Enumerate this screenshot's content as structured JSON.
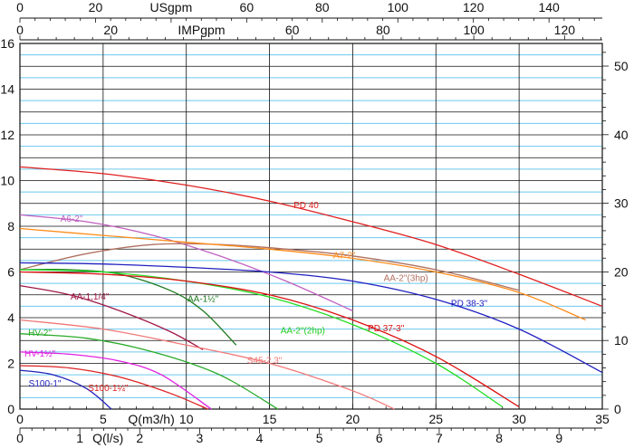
{
  "chart_data": {
    "type": "line",
    "title": "",
    "x": {
      "label": "Q(m3/h)",
      "range": [
        0,
        35
      ],
      "ticks": [
        "0",
        "5",
        "10",
        "15",
        "20",
        "25",
        "30",
        "35"
      ]
    },
    "y_left": {
      "range": [
        0,
        16
      ],
      "ticks": [
        "0",
        "2",
        "4",
        "6",
        "8",
        "10",
        "12",
        "14",
        "16"
      ]
    },
    "y_right": {
      "range": [
        0,
        53.3
      ],
      "ticks": [
        "0",
        "10",
        "20",
        "30",
        "40",
        "50"
      ]
    },
    "top_axis_usgpm": {
      "label": "USgpm",
      "ticks": [
        {
          "label": "0",
          "value": 0
        },
        {
          "label": "20",
          "value": 20
        },
        {
          "label": "USgpm",
          "value": 40
        },
        {
          "label": "60",
          "value": 60
        },
        {
          "label": "80",
          "value": 80
        },
        {
          "label": "100",
          "value": 100
        },
        {
          "label": "120",
          "value": 120
        },
        {
          "label": "140",
          "value": 140
        }
      ]
    },
    "top_axis_impgpm": {
      "label": "IMPgpm",
      "ticks": [
        {
          "label": "0",
          "value": 0
        },
        {
          "label": "20",
          "value": 20
        },
        {
          "label": "IMPgpm",
          "value": 40
        },
        {
          "label": "60",
          "value": 60
        },
        {
          "label": "80",
          "value": 80
        },
        {
          "label": "100",
          "value": 100
        },
        {
          "label": "120",
          "value": 120
        }
      ]
    },
    "bottom_axis_ls": {
      "label": "Q(l/s)",
      "ticks": [
        {
          "label": "0",
          "value": 0
        },
        {
          "label": "1",
          "value": 1
        },
        {
          "label": "Q(l/s)",
          "value": 1.5
        },
        {
          "label": "2",
          "value": 2
        },
        {
          "label": "3",
          "value": 3
        },
        {
          "label": "4",
          "value": 4
        },
        {
          "label": "5",
          "value": 5
        },
        {
          "label": "6",
          "value": 6
        },
        {
          "label": "7",
          "value": 7
        },
        {
          "label": "8",
          "value": 8
        },
        {
          "label": "9",
          "value": 9
        }
      ]
    },
    "series": [
      {
        "name": "PD 40",
        "color": "#e02020",
        "label_at": [
          17.2,
          8.8
        ],
        "x": [
          0,
          5,
          10,
          15,
          20,
          25,
          30,
          35
        ],
        "y": [
          10.6,
          10.3,
          9.8,
          9.1,
          8.2,
          7.2,
          5.9,
          4.5
        ]
      },
      {
        "name": "A6-2\"",
        "color": "#c060c0",
        "label_at": [
          3.1,
          8.2
        ],
        "x": [
          0,
          4,
          8,
          12,
          16,
          20
        ],
        "y": [
          8.5,
          8.2,
          7.6,
          6.7,
          5.6,
          4.3
        ]
      },
      {
        "name": "AA-2\"(3hp)",
        "color": "#b07060",
        "label_at": [
          23.2,
          5.6
        ],
        "x": [
          0,
          4,
          8,
          12,
          16,
          20,
          25,
          30
        ],
        "y": [
          6.1,
          6.8,
          7.2,
          7.2,
          7.0,
          6.7,
          6.1,
          5.2
        ]
      },
      {
        "name": "A7-2\"",
        "color": "#ff8c1a",
        "label_at": [
          19.5,
          6.6
        ],
        "x": [
          0,
          5,
          10,
          15,
          20,
          25,
          30,
          34
        ],
        "y": [
          7.9,
          7.6,
          7.3,
          7.0,
          6.6,
          6.0,
          5.1,
          3.9
        ]
      },
      {
        "name": "PD 38-3\"",
        "color": "#2020c0",
        "label_at": [
          27,
          4.5
        ],
        "x": [
          0,
          5,
          10,
          15,
          20,
          25,
          30,
          35
        ],
        "y": [
          6.4,
          6.35,
          6.2,
          6.0,
          5.6,
          4.8,
          3.5,
          1.6
        ]
      },
      {
        "name": "AA-1,1/4\"",
        "color": "#a01848",
        "label_at": [
          4.2,
          4.8
        ],
        "x": [
          0,
          3,
          6,
          9,
          11
        ],
        "y": [
          5.4,
          5.0,
          4.3,
          3.4,
          2.6
        ]
      },
      {
        "name": "AA-1½\"",
        "color": "#1f7a1f",
        "label_at": [
          11,
          4.7
        ],
        "x": [
          0,
          3,
          6,
          9,
          11,
          13
        ],
        "y": [
          6.1,
          6.1,
          5.9,
          5.2,
          4.3,
          2.8
        ]
      },
      {
        "name": "AA-2\"(2hp)",
        "color": "#22dd22",
        "label_at": [
          17,
          3.3
        ],
        "x": [
          0,
          5,
          10,
          15,
          20,
          25,
          29
        ],
        "y": [
          6.1,
          6.0,
          5.6,
          4.9,
          3.7,
          2.0,
          0.1
        ]
      },
      {
        "name": "PD 37-3\"",
        "color": "#dd1111",
        "label_at": [
          22,
          3.4
        ],
        "x": [
          0,
          5,
          10,
          15,
          20,
          25,
          30
        ],
        "y": [
          6.0,
          5.9,
          5.6,
          5.0,
          3.9,
          2.3,
          0.1
        ]
      },
      {
        "name": "HV-2\"",
        "color": "#2aaa2a",
        "label_at": [
          1.2,
          3.2
        ],
        "x": [
          0,
          4,
          8,
          12,
          15.5
        ],
        "y": [
          3.3,
          3.1,
          2.5,
          1.5,
          0.0
        ]
      },
      {
        "name": "S45-2,3\"",
        "color": "#f07878",
        "label_at": [
          14.7,
          2.0
        ],
        "x": [
          0,
          5,
          10,
          15,
          20,
          22.5
        ],
        "y": [
          3.9,
          3.5,
          2.8,
          2.0,
          0.8,
          0.0
        ]
      },
      {
        "name": "HV-1½\"",
        "color": "#e020e0",
        "label_at": [
          1.2,
          2.3
        ],
        "x": [
          0,
          3,
          6,
          8.5,
          11.5
        ],
        "y": [
          2.5,
          2.4,
          2.1,
          1.5,
          0.0
        ]
      },
      {
        "name": "S100-1¼\"",
        "color": "#dd2222",
        "label_at": [
          5.3,
          0.8
        ],
        "x": [
          0,
          3,
          6,
          9,
          11.3
        ],
        "y": [
          1.9,
          1.8,
          1.4,
          0.7,
          0.0
        ]
      },
      {
        "name": "S100-1\"",
        "color": "#2222bb",
        "label_at": [
          1.5,
          1.0
        ],
        "x": [
          0,
          2,
          4,
          5.5
        ],
        "y": [
          1.7,
          1.5,
          0.9,
          0.0
        ]
      }
    ]
  }
}
